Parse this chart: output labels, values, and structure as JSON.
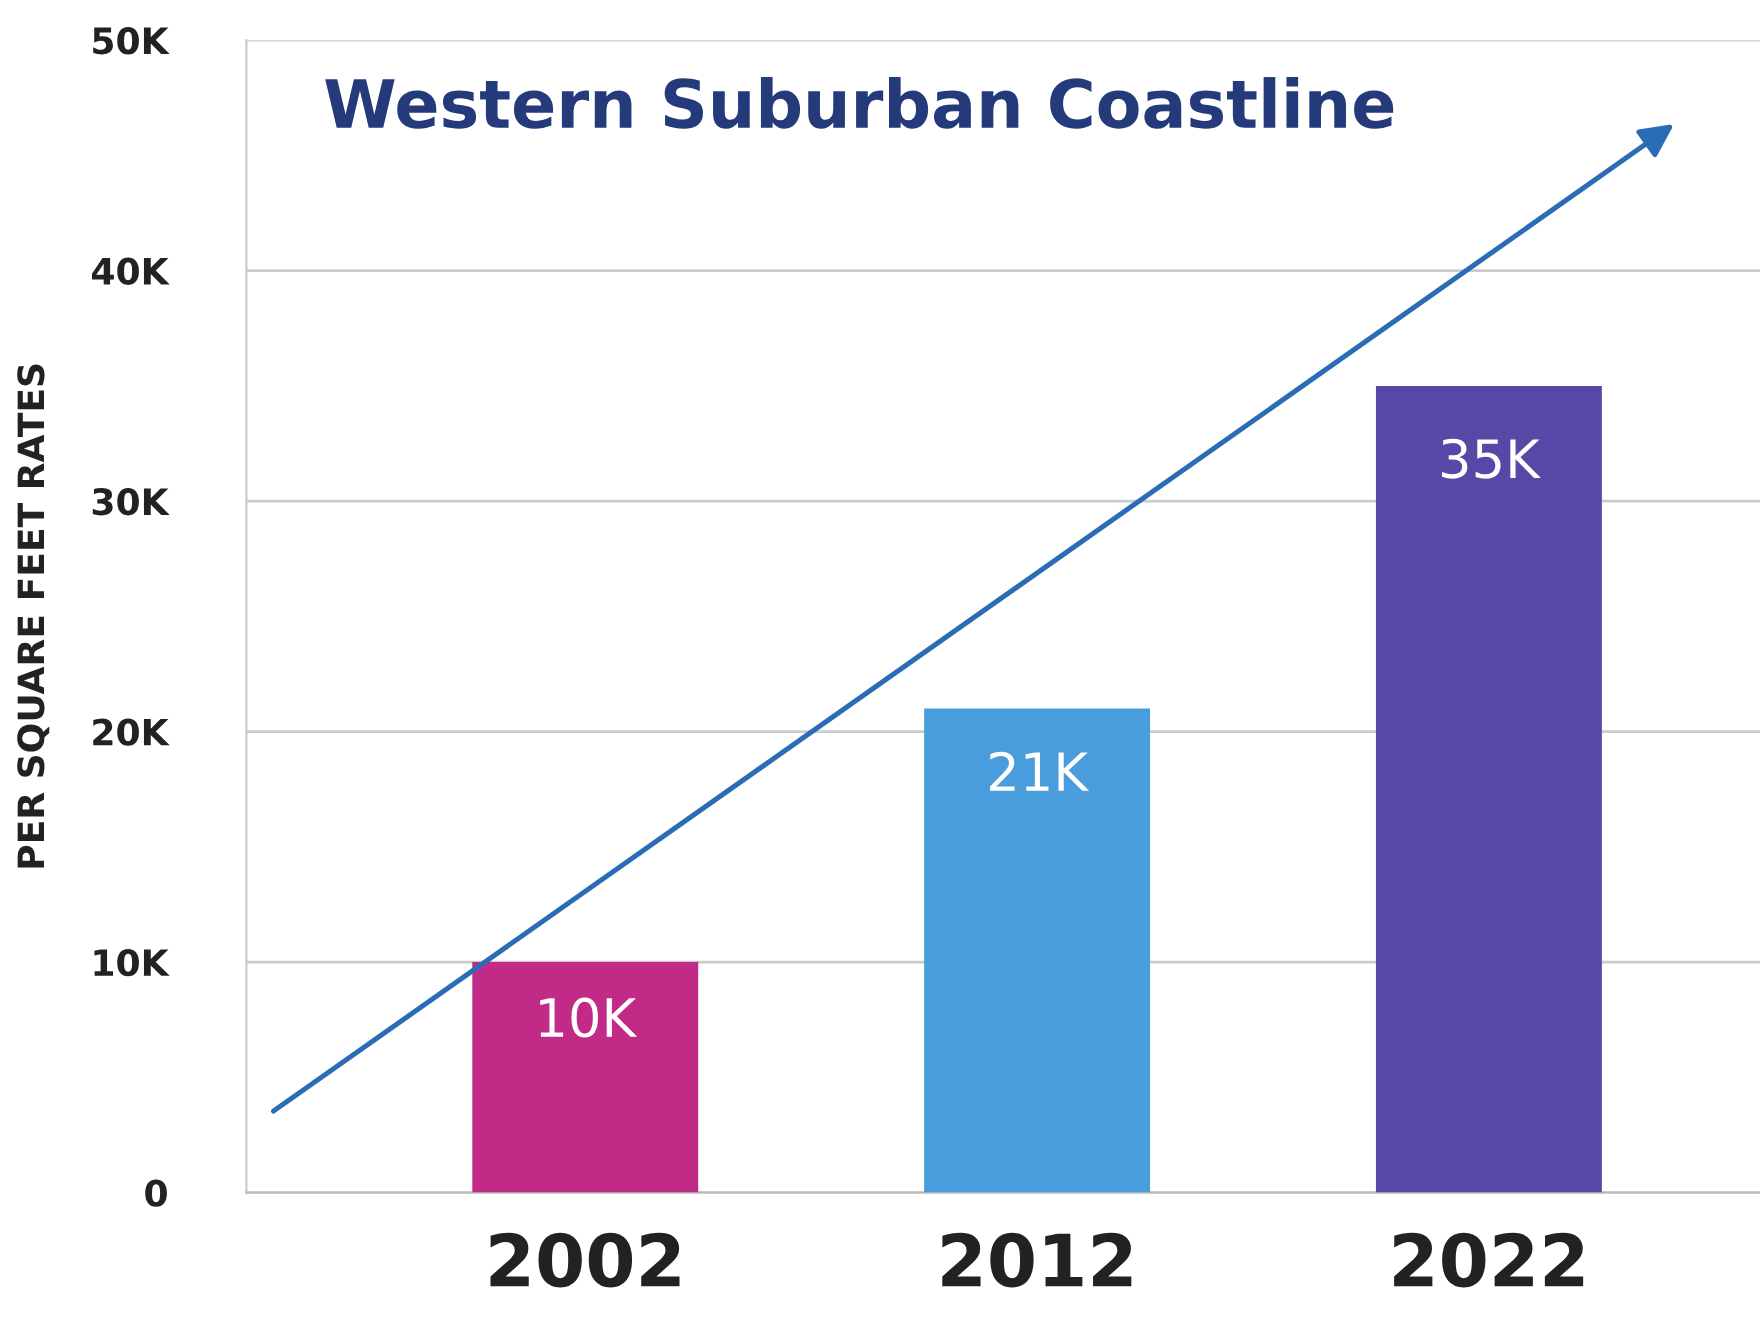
{
  "chart_data": {
    "type": "bar",
    "title": "Western Suburban Coastline",
    "ylabel": "PER SQUARE FEET RATES",
    "categories": [
      "2002",
      "2012",
      "2022"
    ],
    "values": [
      10000,
      21000,
      35000
    ],
    "colors": [
      "#c12a86",
      "#4a9ddc",
      "#5648a6"
    ],
    "value_labels": [
      "10K",
      "21K",
      "35K"
    ],
    "ylim": [
      0,
      50000
    ],
    "yticks": [
      0,
      {
        "value": 10000,
        "label": "10K"
      },
      {
        "value": 20000,
        "label": "20K"
      },
      {
        "value": 30000,
        "label": "30K"
      },
      {
        "value": 40000,
        "label": "40K"
      },
      {
        "value": 50000,
        "label": "50K"
      }
    ],
    "grid": "y"
  }
}
